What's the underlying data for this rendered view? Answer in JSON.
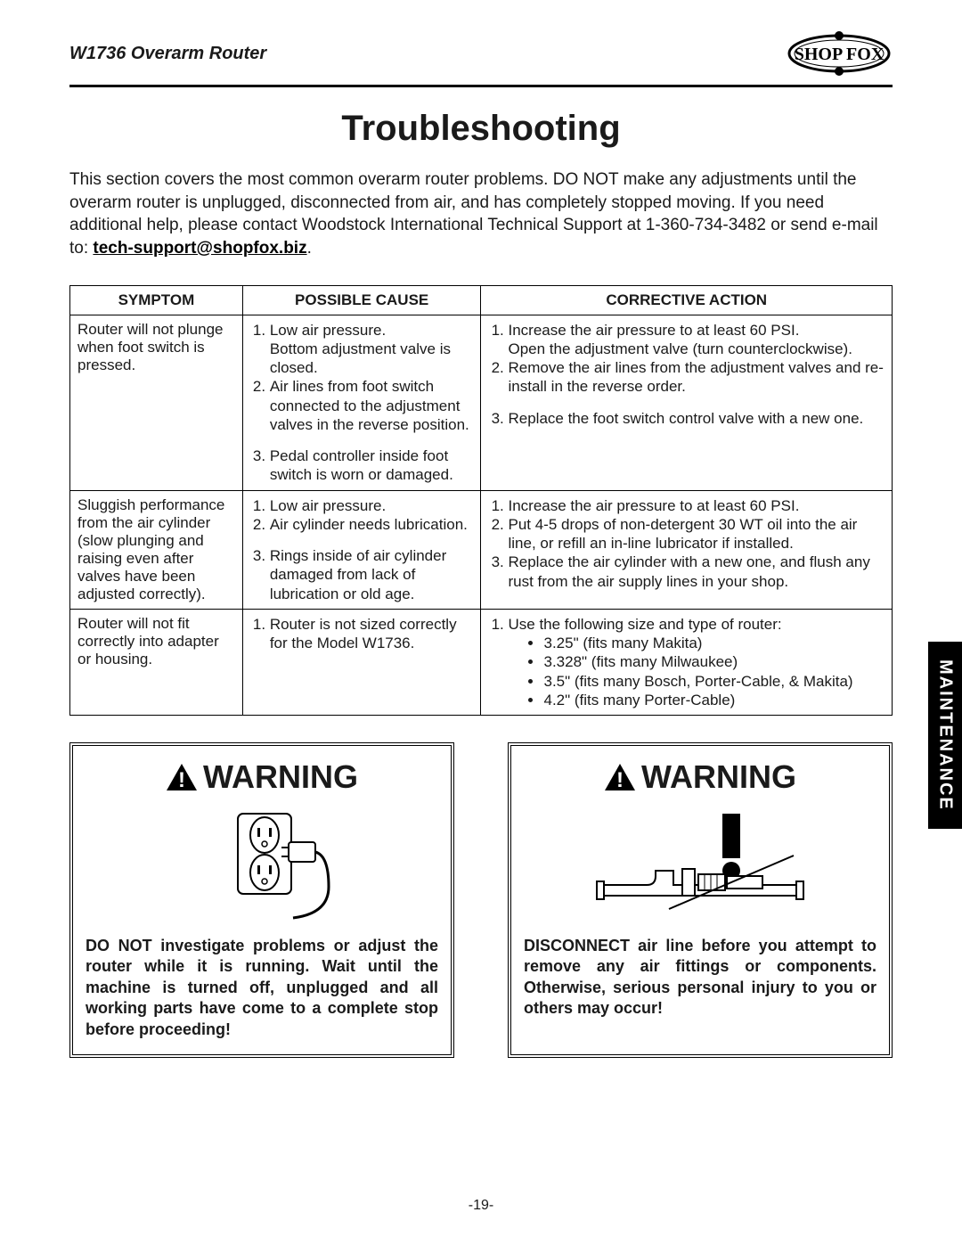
{
  "header": {
    "product": "W1736 Overarm Router",
    "brand": "SHOP FOX"
  },
  "title": "Troubleshooting",
  "intro_text": "This section covers the most common overarm router problems. DO NOT make any adjustments until the overarm router is unplugged, disconnected from air, and has completely stopped moving. If you need additional help, please contact Woodstock International Technical Support at 1-360-734-3482 or send e-mail to: ",
  "intro_email": "tech-support@shopfox.biz",
  "table": {
    "columns": [
      "SYMPTOM",
      "POSSIBLE CAUSE",
      "CORRECTIVE ACTION"
    ],
    "rows": [
      {
        "symptom": "Router will not plunge when foot switch is pressed.",
        "causes": [
          "Low air pressure.\nBottom adjustment valve is closed.",
          "Air lines from foot switch connected to the adjustment valves in the reverse position.",
          "Pedal controller inside foot switch is worn or damaged."
        ],
        "actions": [
          "Increase the air pressure to at least 60 PSI.\nOpen the adjustment valve (turn counterclockwise).",
          "Remove the air lines from the adjustment valves and re-install in the reverse order.",
          "Replace the foot switch control valve with a new one."
        ]
      },
      {
        "symptom": "Sluggish performance from the air cylinder (slow plunging and raising even after valves have been adjusted correctly).",
        "causes": [
          "Low air pressure.",
          "Air cylinder needs lubrication.",
          "Rings inside of air cylinder damaged from lack of lubrication or old age."
        ],
        "actions": [
          "Increase the air pressure to at least 60 PSI.",
          "Put 4-5 drops of non-detergent 30 WT oil into the air line, or refill an in-line lubricator if installed.",
          "Replace the air cylinder with a new one, and flush any rust from the air supply lines in your shop."
        ]
      },
      {
        "symptom": "Router will not fit correctly into adapter or housing.",
        "causes": [
          "Router is not sized correctly for the Model W1736."
        ],
        "actions_lead": "Use the following size and type of router:",
        "actions_bullets": [
          "3.25\" (fits many Makita)",
          "3.328\" (fits many Milwaukee)",
          "3.5\" (fits many Bosch, Porter-Cable, & Makita)",
          "4.2\" (fits many Porter-Cable)"
        ]
      }
    ]
  },
  "warnings": {
    "label": "WARNING",
    "left_text": "DO NOT investigate problems or adjust the router while it is running. Wait until the machine is turned off, unplugged and all working parts have come to a complete stop before proceeding!",
    "right_text": "DISCONNECT air line before you attempt to remove any air fittings or components. Otherwise, serious personal injury to you or others may occur!"
  },
  "side_tab": "MAINTENANCE",
  "page_number": "-19-"
}
